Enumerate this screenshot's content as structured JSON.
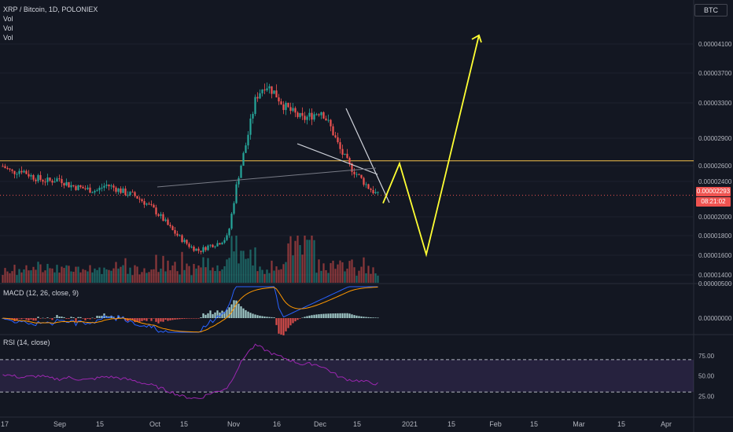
{
  "header": {
    "symbol_line": "XRP / Bitcoin, 1D, POLONIEX",
    "vol_labels": [
      "Vol",
      "Vol",
      "Vol"
    ],
    "currency": "BTC"
  },
  "panes": {
    "macd_label": "MACD (12, 26, close, 9)",
    "rsi_label": "RSI (14, close)"
  },
  "last_price": {
    "value": "0.00002293",
    "countdown": "08:21:02"
  },
  "colors": {
    "background": "#131722",
    "up": "#26a69a",
    "down": "#ef5350",
    "macd_line": "#2962ff",
    "signal_line": "#ff9800",
    "rsi_line": "#9c27b0",
    "projection": "#ffff33",
    "horizontal_line": "#f5c04a",
    "wedge_lines": "#d1d4dc"
  },
  "chart_data": {
    "type": "candlestick",
    "price_axis": {
      "ticks": [
        "0.00004100",
        "0.00003700",
        "0.00003300",
        "0.00002900",
        "0.00002600",
        "0.00002400",
        "0.00002000",
        "0.00001800",
        "0.00001600",
        "0.00001400"
      ],
      "ylim": [
        1.3e-05,
        4.5e-05
      ]
    },
    "x_axis": {
      "ticks": [
        "17",
        "Sep",
        "15",
        "Oct",
        "15",
        "Nov",
        "16",
        "Dec",
        "15",
        "2021",
        "15",
        "Feb",
        "15",
        "Mar",
        "15",
        "Apr"
      ]
    },
    "close_path": [
      2.62e-05,
      2.55e-05,
      2.58e-05,
      2.51e-05,
      2.47e-05,
      2.45e-05,
      2.48e-05,
      2.41e-05,
      2.38e-05,
      2.36e-05,
      2.34e-05,
      2.41e-05,
      2.37e-05,
      2.32e-05,
      2.29e-05,
      2.22e-05,
      2.14e-05,
      2.03e-05,
      1.9e-05,
      1.8e-05,
      1.71e-05,
      1.66e-05,
      1.72e-05,
      1.75e-05,
      1.82e-05,
      2.45e-05,
      2.9e-05,
      3.4e-05,
      3.55e-05,
      3.45e-05,
      3.3e-05,
      3.22e-05,
      3.15e-05,
      3.2e-05,
      3.25e-05,
      3.05e-05,
      2.8e-05,
      2.62e-05,
      2.5e-05,
      2.38e-05,
      2.29e-05
    ],
    "resistance_level": 2.68e-05,
    "last_close_marker": 2.29e-05,
    "projection_path": [
      [
        2.2e-05
      ],
      [
        2.65e-05
      ],
      [
        1.62e-05
      ],
      [
        4.1e-05
      ]
    ],
    "macd": {
      "axis_ticks": [
        "0.00000500",
        "0.00000000"
      ]
    },
    "rsi": {
      "axis_ticks": [
        "75.00",
        "50.00",
        "25.00"
      ],
      "bands": [
        70,
        30
      ],
      "series_path": [
        52,
        50,
        48,
        49,
        50,
        47,
        46,
        48,
        46,
        45,
        47,
        49,
        48,
        46,
        44,
        41,
        38,
        34,
        30,
        25,
        23,
        22,
        28,
        31,
        36,
        58,
        78,
        88,
        82,
        76,
        72,
        68,
        64,
        65,
        62,
        55,
        48,
        45,
        44,
        42,
        40
      ]
    }
  }
}
